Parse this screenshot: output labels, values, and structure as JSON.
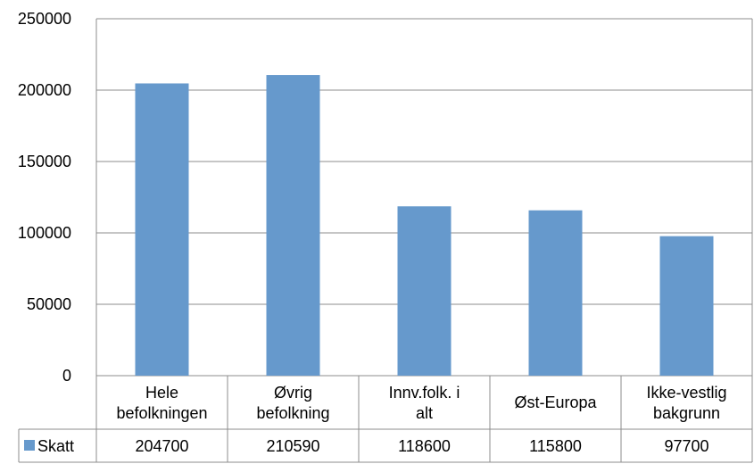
{
  "chart_data": {
    "type": "bar",
    "categories": [
      [
        "Hele",
        "befolkningen"
      ],
      [
        "Øvrig",
        "befolkning"
      ],
      [
        "Innv.folk. i",
        "alt"
      ],
      [
        "Øst-Europa"
      ],
      [
        "Ikke-vestlig",
        "bakgrunn"
      ]
    ],
    "series": [
      {
        "name": "Skatt",
        "color": "#6699cc",
        "values": [
          204700,
          210590,
          118600,
          115800,
          97700
        ]
      }
    ],
    "ylim": [
      0,
      250000
    ],
    "yticks": [
      "0",
      "50000",
      "100000",
      "150000",
      "200000",
      "250000"
    ],
    "grid": true,
    "legend": "data-table",
    "data_table": true
  }
}
